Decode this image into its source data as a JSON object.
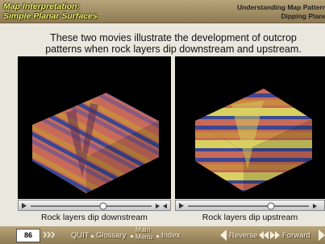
{
  "header": {
    "title_lines": [
      "Map Interpretation:",
      "Simple Planar Surfaces"
    ],
    "right_lines": [
      "Understanding Map Pattern",
      "Dipping Plane"
    ]
  },
  "intro": {
    "lines": [
      "These two movies illustrate the development of outcrop",
      "patterns when rock layers dip downstream and upstream."
    ]
  },
  "movies": [
    {
      "caption": "Rock layers dip downstream"
    },
    {
      "caption": "Rock layers dip upstream"
    }
  ],
  "footer": {
    "page": "86",
    "quit": "QUIT",
    "glossary": "Glossary",
    "main_menu": [
      "Main",
      "Menu"
    ],
    "index": "Index",
    "reverse": "Reverse",
    "forward": "Forward"
  }
}
